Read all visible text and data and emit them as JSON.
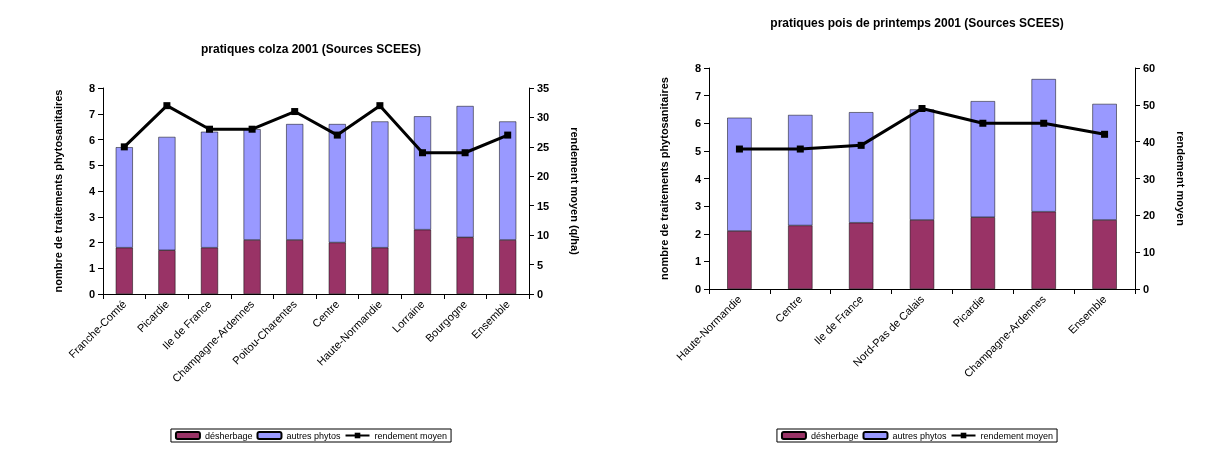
{
  "chart_data": [
    {
      "type": "bar",
      "title": "pratiques colza 2001 (Sources SCEES)",
      "ylabel": "nombre de traitements phytosanitaires",
      "y2label": "rendement moyen (q/ha)",
      "categories": [
        "Franche-Comté",
        "Picardie",
        "Ile de France",
        "Champagne-Ardennes",
        "Poitou-Charentes",
        "Centre",
        "Haute-Normandie",
        "Lorraine",
        "Bourgogne",
        "Ensemble"
      ],
      "stacked": true,
      "series": [
        {
          "name": "désherbage",
          "color": "#993366",
          "values": [
            1.8,
            1.7,
            1.8,
            2.1,
            2.1,
            2.0,
            1.8,
            2.5,
            2.2,
            2.1
          ]
        },
        {
          "name": "autres phytos",
          "color": "#9999ff",
          "values": [
            3.9,
            4.4,
            4.5,
            4.3,
            4.5,
            4.6,
            4.9,
            4.4,
            5.1,
            4.6
          ]
        },
        {
          "name": "rendement moyen",
          "type": "line",
          "axis": "y2",
          "color": "#000000",
          "values": [
            25,
            32,
            28,
            28,
            31,
            27,
            32,
            24,
            24,
            27
          ]
        }
      ],
      "ylim": [
        0,
        8
      ],
      "yticks": [
        0,
        1,
        2,
        3,
        4,
        5,
        6,
        7,
        8
      ],
      "y2lim": [
        0,
        35
      ],
      "y2ticks": [
        0,
        5,
        10,
        15,
        20,
        25,
        30,
        35
      ],
      "grid": false,
      "legend": "bottom",
      "marker": "square",
      "line_style": "solid"
    },
    {
      "type": "bar",
      "title": "pratiques pois de printemps 2001 (Sources SCEES)",
      "ylabel": "nombre de traitements phytosanitaires",
      "y2label": "rendement moyen",
      "categories": [
        "Haute-Normandie",
        "Centre",
        "Ile de France",
        "Nord-Pas de Calais",
        "Picardie",
        "Champagne-Ardennes",
        "Ensemble"
      ],
      "stacked": true,
      "series": [
        {
          "name": "désherbage",
          "color": "#993366",
          "values": [
            2.1,
            2.3,
            2.4,
            2.5,
            2.6,
            2.8,
            2.5
          ]
        },
        {
          "name": "autres phytos",
          "color": "#9999ff",
          "values": [
            4.1,
            4.0,
            4.0,
            4.0,
            4.2,
            4.8,
            4.2
          ]
        },
        {
          "name": "rendement moyen",
          "type": "line",
          "axis": "y2",
          "color": "#000000",
          "values": [
            38,
            38,
            39,
            49,
            45,
            45,
            42
          ]
        }
      ],
      "ylim": [
        0,
        8
      ],
      "yticks": [
        0,
        1,
        2,
        3,
        4,
        5,
        6,
        7,
        8
      ],
      "y2lim": [
        0,
        60
      ],
      "y2ticks": [
        0,
        10,
        20,
        30,
        40,
        50,
        60
      ],
      "grid": false,
      "legend": "bottom",
      "marker": "square",
      "line_style": "solid"
    }
  ]
}
